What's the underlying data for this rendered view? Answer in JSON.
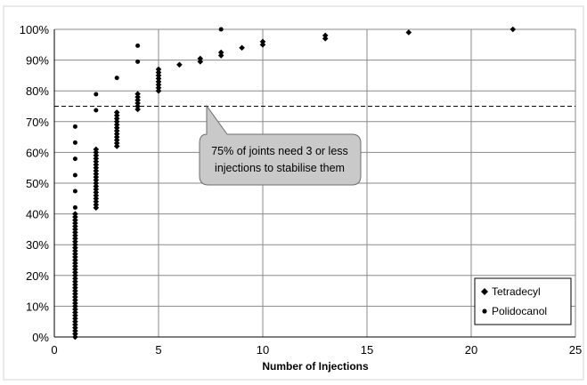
{
  "chart_data": {
    "type": "scatter",
    "title": "",
    "xlabel": "Number of Injections",
    "ylabel": "",
    "xlim": [
      0,
      25
    ],
    "ylim": [
      0,
      1
    ],
    "x_ticks": [
      "0",
      "5",
      "10",
      "15",
      "20",
      "25"
    ],
    "y_ticks": [
      "0%",
      "10%",
      "20%",
      "30%",
      "40%",
      "50%",
      "60%",
      "70%",
      "80%",
      "90%",
      "100%"
    ],
    "grid": true,
    "legend_position": "bottom-right",
    "reference_line": {
      "y": 0.75,
      "style": "dashed"
    },
    "annotation": {
      "lines": [
        "75% of joints need 3 or less",
        "injections to stabilise them"
      ],
      "points_to": {
        "x": 8,
        "y": 0.75
      }
    },
    "series": [
      {
        "name": "Tetradecyl",
        "marker": "diamond",
        "color": "#000000",
        "points": [
          {
            "x": 1,
            "y_from": 0.0,
            "y_to": 0.4,
            "step": 0.01
          },
          {
            "x": 2,
            "y_from": 0.42,
            "y_to": 0.61,
            "step": 0.01
          },
          {
            "x": 3,
            "y_from": 0.62,
            "y_to": 0.73,
            "step": 0.01
          },
          {
            "x": 4,
            "y_from": 0.74,
            "y_to": 0.79,
            "step": 0.01
          },
          {
            "x": 5,
            "y_from": 0.8,
            "y_to": 0.875,
            "step": 0.01
          },
          {
            "x": 6,
            "y": 0.885
          },
          {
            "x": 7,
            "y": 0.895
          },
          {
            "x": 7,
            "y": 0.905
          },
          {
            "x": 8,
            "y": 0.915
          },
          {
            "x": 8,
            "y": 0.925
          },
          {
            "x": 9,
            "y": 0.94
          },
          {
            "x": 10,
            "y": 0.95
          },
          {
            "x": 10,
            "y": 0.96
          },
          {
            "x": 13,
            "y": 0.97
          },
          {
            "x": 13,
            "y": 0.98
          },
          {
            "x": 17,
            "y": 0.99
          },
          {
            "x": 22,
            "y": 1.0
          }
        ]
      },
      {
        "name": "Polidocanol",
        "marker": "circle",
        "color": "#000000",
        "points": [
          {
            "x": 1,
            "y": 0.684
          },
          {
            "x": 1,
            "y": 0.632
          },
          {
            "x": 1,
            "y": 0.579
          },
          {
            "x": 1,
            "y": 0.526
          },
          {
            "x": 1,
            "y": 0.474
          },
          {
            "x": 1,
            "y": 0.421
          },
          {
            "x": 2,
            "y": 0.789
          },
          {
            "x": 2,
            "y": 0.737
          },
          {
            "x": 3,
            "y": 0.842
          },
          {
            "x": 4,
            "y": 0.947
          },
          {
            "x": 4,
            "y": 0.895
          },
          {
            "x": 8,
            "y": 1.0
          }
        ]
      }
    ]
  }
}
